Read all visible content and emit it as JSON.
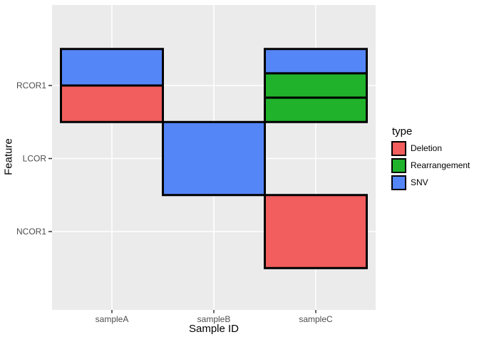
{
  "chart_data": {
    "type": "heatmap",
    "title": "",
    "xlabel": "Sample ID",
    "ylabel": "Feature",
    "x_categories": [
      "sampleA",
      "sampleB",
      "sampleC"
    ],
    "y_categories": [
      "RCOR1",
      "LCOR",
      "NCOR1"
    ],
    "legend": {
      "title": "type",
      "position": "right",
      "entries": [
        {
          "label": "Deletion",
          "color": "#F25D5D"
        },
        {
          "label": "Rearrangement",
          "color": "#20B22B"
        },
        {
          "label": "SNV",
          "color": "#5586F8"
        }
      ]
    },
    "cells": [
      {
        "x": "sampleA",
        "y": "RCOR1",
        "slices": [
          "SNV",
          "Deletion"
        ]
      },
      {
        "x": "sampleB",
        "y": "LCOR",
        "slices": [
          "SNV"
        ]
      },
      {
        "x": "sampleC",
        "y": "RCOR1",
        "slices": [
          "SNV",
          "Rearrangement",
          "Rearrangement"
        ]
      },
      {
        "x": "sampleC",
        "y": "NCOR1",
        "slices": [
          "Deletion"
        ]
      }
    ],
    "style": {
      "panel_bg": "#EBEBEB",
      "grid_color": "#FFFFFF",
      "tile_border_color": "#000000",
      "tick_color": "#333333",
      "tick_label_color": "#4D4D4D",
      "title_color": "#000000"
    }
  }
}
